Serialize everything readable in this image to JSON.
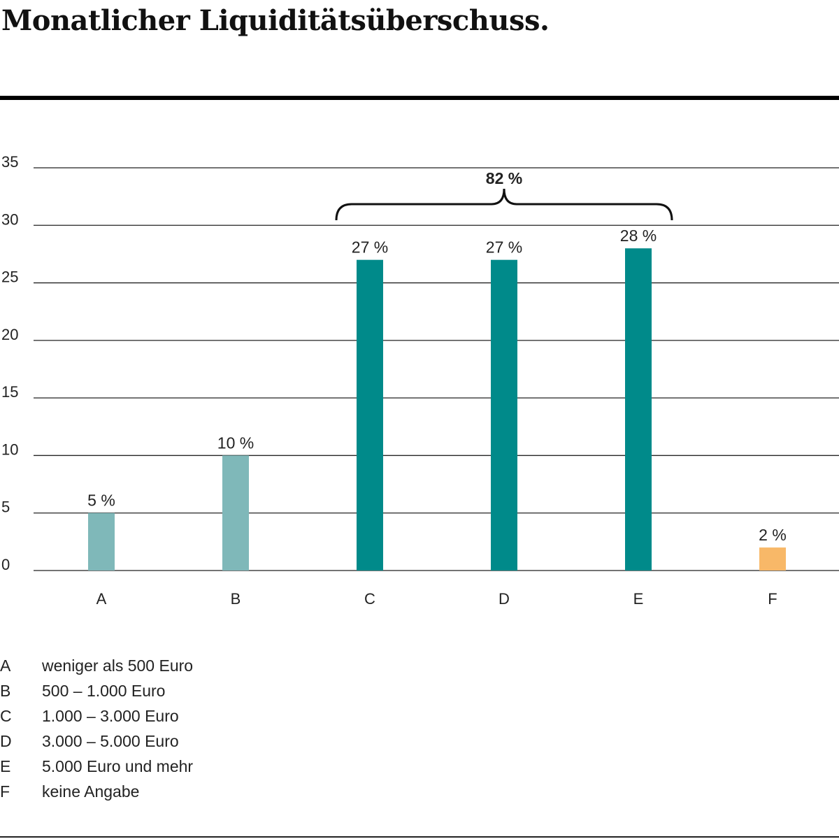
{
  "title": "Monatlicher Liquiditätsüberschuss.",
  "colors": {
    "light": "#7fb8b9",
    "dark": "#008a8a",
    "orange": "#f8b868",
    "grid": "#222222",
    "text": "#222222"
  },
  "chart_data": {
    "type": "bar",
    "categories": [
      "A",
      "B",
      "C",
      "D",
      "E",
      "F"
    ],
    "values": [
      5,
      10,
      27,
      27,
      28,
      2
    ],
    "data_labels": [
      "5 %",
      "10 %",
      "27 %",
      "27 %",
      "28 %",
      "2 %"
    ],
    "bar_colors": [
      "light",
      "light",
      "dark",
      "dark",
      "dark",
      "orange"
    ],
    "y_ticks": [
      0,
      5,
      10,
      15,
      20,
      25,
      30,
      35
    ],
    "ylim": [
      0,
      35
    ],
    "grid": true,
    "annotation": {
      "label": "82 %",
      "from_category": "C",
      "to_category": "E"
    }
  },
  "legend": [
    {
      "key": "A",
      "label": "weniger als 500 Euro"
    },
    {
      "key": "B",
      "label": "500 – 1.000 Euro"
    },
    {
      "key": "C",
      "label": "1.000 – 3.000 Euro"
    },
    {
      "key": "D",
      "label": "3.000 – 5.000 Euro"
    },
    {
      "key": "E",
      "label": "5.000 Euro und mehr"
    },
    {
      "key": "F",
      "label": "keine Angabe"
    }
  ]
}
